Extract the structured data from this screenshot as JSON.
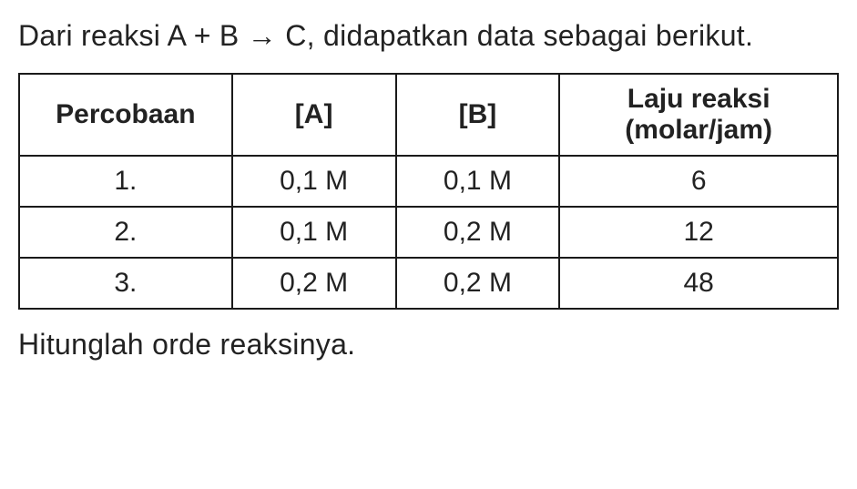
{
  "intro": {
    "prefix": "Dari reaksi ",
    "reaction": "A + B → C",
    "suffix": ", didapatkan data sebagai berikut."
  },
  "table": {
    "headers": {
      "percobaan": "Percobaan",
      "A": "[A]",
      "B": "[B]",
      "rate_line1": "Laju reaksi",
      "rate_line2": "(molar/jam)"
    },
    "rows": [
      {
        "n": "1.",
        "A": "0,1 M",
        "B": "0,1 M",
        "rate": "6"
      },
      {
        "n": "2.",
        "A": "0,1 M",
        "B": "0,2 M",
        "rate": "12"
      },
      {
        "n": "3.",
        "A": "0,2 M",
        "B": "0,2 M",
        "rate": "48"
      }
    ],
    "border_color": "#1a1a1a",
    "text_color": "#222222",
    "background_color": "#ffffff",
    "header_fontweight": 700,
    "cell_fontsize": 30,
    "intro_fontsize": 32,
    "col_widths_pct": [
      26,
      20,
      20,
      34
    ]
  },
  "outro": "Hitunglah orde reaksinya."
}
